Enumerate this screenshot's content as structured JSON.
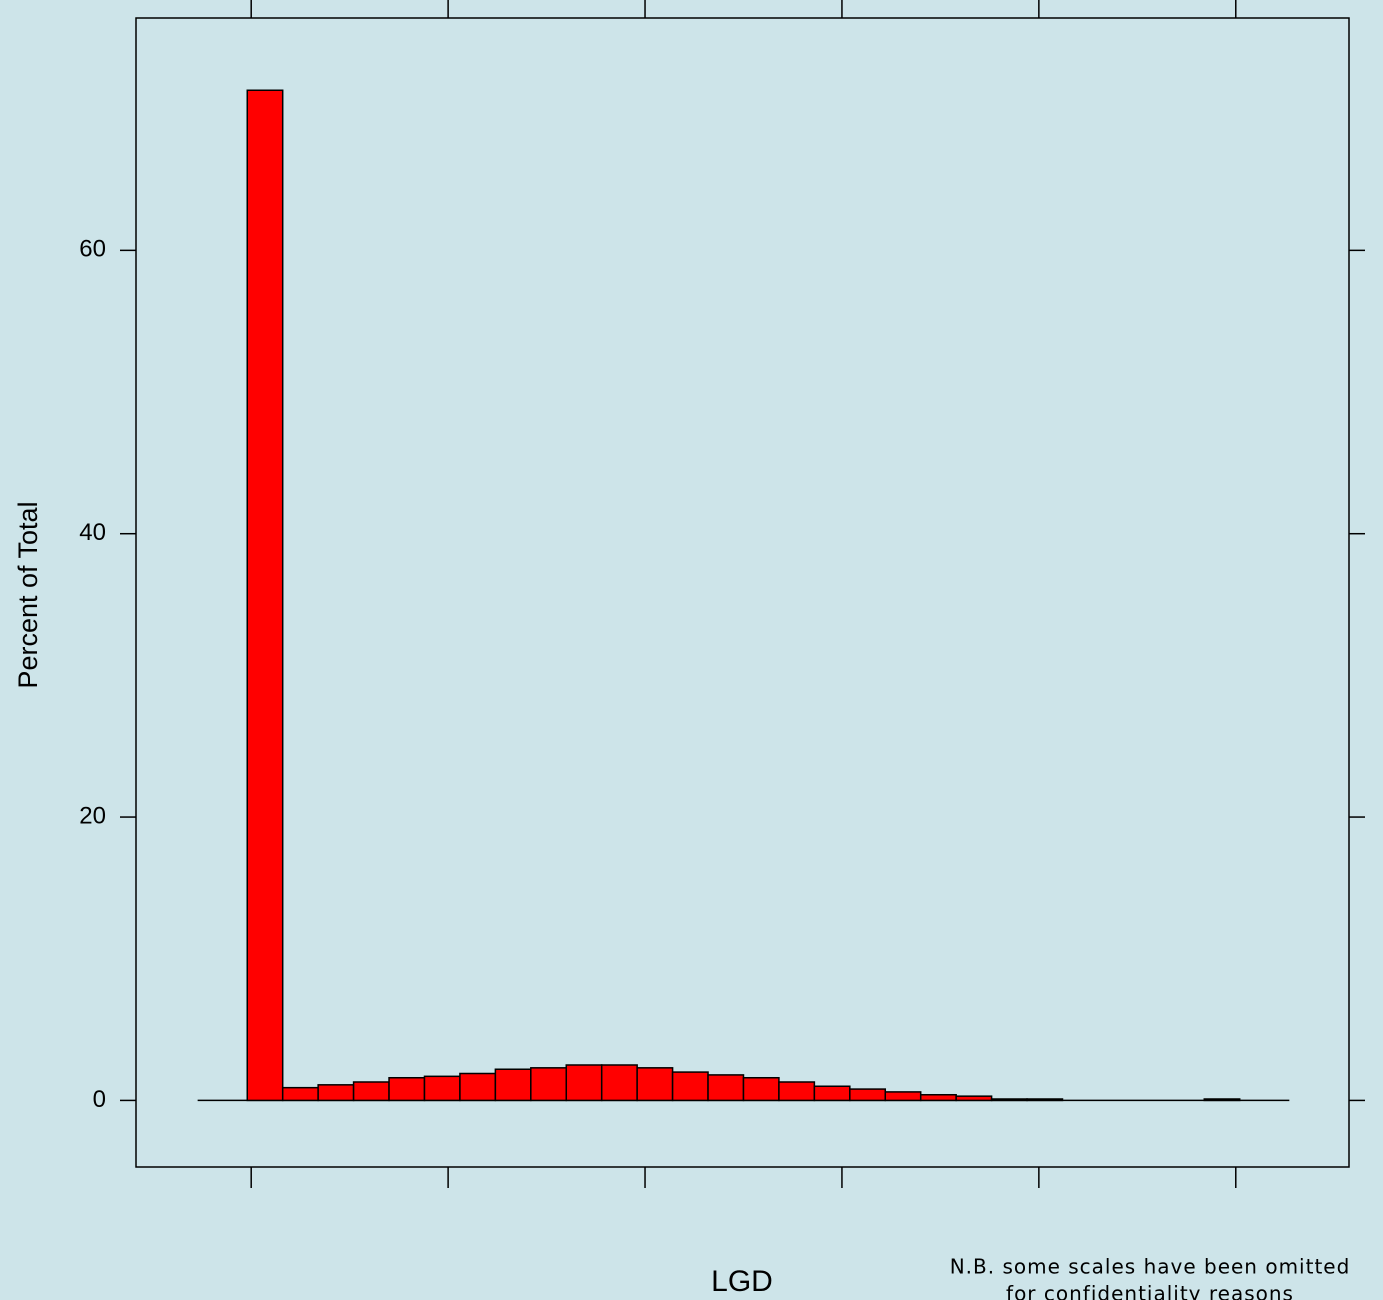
{
  "chart_data": {
    "type": "histogram",
    "xlabel": "LGD",
    "ylabel": "Percent of Total",
    "note": [
      "N.B. some scales have been omitted",
      "for confidentiality reasons"
    ],
    "bins": [
      -0.004,
      0.032,
      0.068,
      0.104,
      0.14,
      0.176,
      0.212,
      0.248,
      0.284,
      0.32,
      0.356,
      0.392,
      0.428,
      0.464,
      0.5,
      0.536,
      0.572,
      0.608,
      0.644,
      0.68,
      0.716,
      0.752,
      0.788,
      0.824,
      0.86,
      0.896,
      0.932,
      0.968,
      1.004
    ],
    "values": [
      71.3,
      0.9,
      1.1,
      1.3,
      1.6,
      1.7,
      1.9,
      2.2,
      2.3,
      2.5,
      2.5,
      2.3,
      2.0,
      1.8,
      1.6,
      1.3,
      1.0,
      0.8,
      0.6,
      0.4,
      0.3,
      0.1,
      0.1,
      0,
      0,
      0,
      0,
      0.1
    ],
    "color": "#ff0000",
    "xlim": [
      -0.117,
      1.115
    ],
    "ylim": [
      -4.7,
      76.4
    ],
    "xticks": [
      0,
      0.2,
      0.4,
      0.6,
      0.8,
      1.0
    ],
    "yticks": [
      0,
      20,
      40,
      60
    ]
  }
}
